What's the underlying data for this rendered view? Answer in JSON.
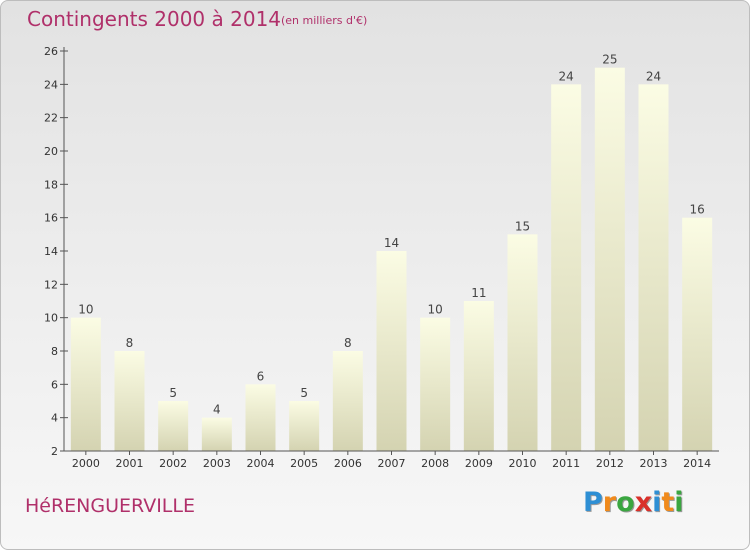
{
  "header": {
    "title": "Contingents 2000 à 2014",
    "subtitle": "(en milliers d'€)"
  },
  "footer": {
    "commune": "HéRENGUERVILLE",
    "logo_text": "Proxiti",
    "logo_colors": [
      "#2e8fd4",
      "#f08a1c",
      "#3aa640",
      "#d9302a",
      "#2e8fd4",
      "#f08a1c",
      "#3aa640"
    ]
  },
  "colors": {
    "title": "#b0306a",
    "bar_top": "#fbfce4",
    "bar_bottom": "#d4d3b1",
    "axis": "#555555",
    "label": "#444444"
  },
  "chart_data": {
    "type": "bar",
    "title": "Contingents 2000 à 2014",
    "subtitle": "(en milliers d'€)",
    "categories": [
      "2000",
      "2001",
      "2002",
      "2003",
      "2004",
      "2005",
      "2006",
      "2007",
      "2008",
      "2009",
      "2010",
      "2011",
      "2012",
      "2013",
      "2014"
    ],
    "values": [
      10,
      8,
      5,
      4,
      6,
      5,
      8,
      14,
      10,
      11,
      15,
      24,
      25,
      24,
      16
    ],
    "ylim": [
      2,
      26
    ],
    "yticks": [
      2,
      4,
      6,
      8,
      10,
      12,
      14,
      16,
      18,
      20,
      22,
      24,
      26
    ],
    "grid": false,
    "data_labels": true
  }
}
